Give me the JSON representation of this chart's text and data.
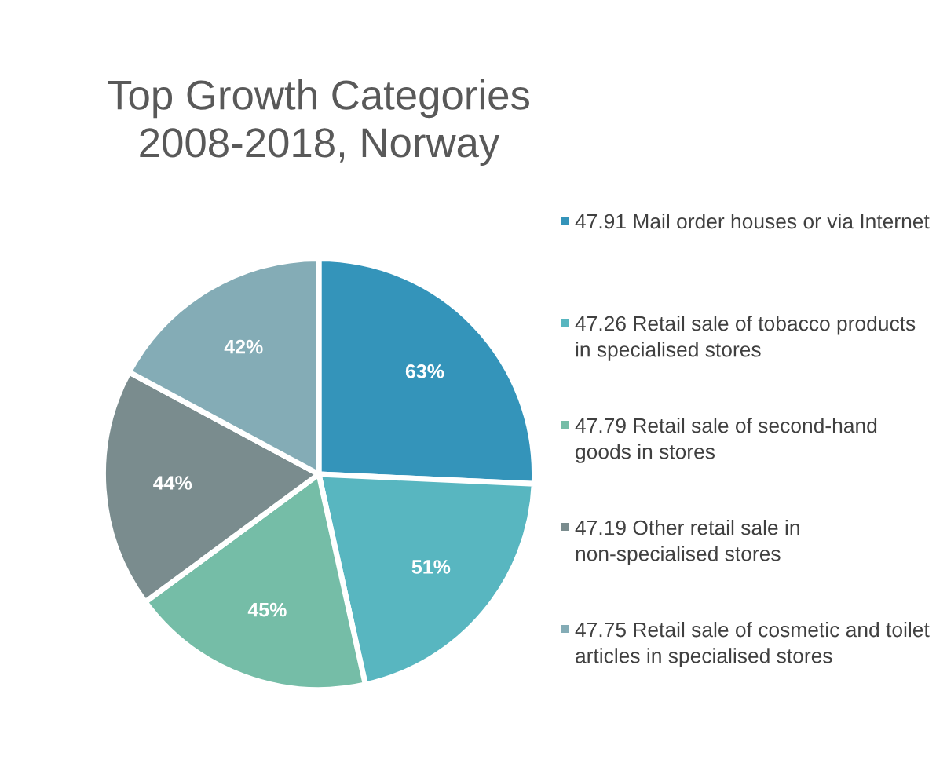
{
  "chart_data": {
    "type": "pie",
    "title": "Top Growth Categories\n2008-2018, Norway",
    "categories": [
      "47.91 Mail order houses or via Internet",
      "47.26 Retail sale of tobacco products in specialised stores",
      "47.79 Retail sale of second-hand goods in stores",
      "47.19 Other retail sale in non-specialised stores",
      "47.75 Retail sale of cosmetic and toilet articles in specialised stores"
    ],
    "values": [
      63,
      51,
      45,
      44,
      42
    ],
    "colors": [
      "#3494ba",
      "#58b6c0",
      "#75bda7",
      "#7a8c8e",
      "#84acb6"
    ],
    "value_labels": [
      "63%",
      "51%",
      "45%",
      "44%",
      "42%"
    ],
    "legend": "right"
  }
}
